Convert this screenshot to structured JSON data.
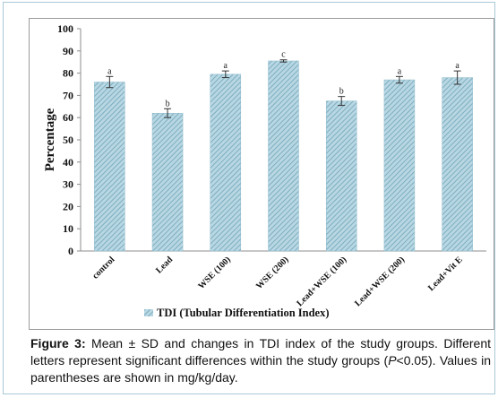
{
  "chart_data": {
    "type": "bar",
    "categories": [
      "control",
      "Lead",
      "WSE (100)",
      "WSE (200)",
      "Lead+WSE (100)",
      "Lead+WSE (200)",
      "Lead+Vit E"
    ],
    "series": [
      {
        "name": "TDI (Tubular Differentiation Index)",
        "values": [
          76,
          62,
          79.5,
          85.5,
          67.5,
          77,
          78
        ],
        "errors": [
          2.5,
          2.0,
          1.5,
          0.5,
          2.0,
          1.5,
          3.0
        ],
        "letters": [
          "a",
          "b",
          "a",
          "c",
          "b",
          "a",
          "a"
        ]
      }
    ],
    "ylabel": "Percentage",
    "xlabel": "",
    "ylim": [
      0,
      100
    ],
    "yticks": [
      "0",
      "10",
      "20",
      "30",
      "40",
      "50",
      "60",
      "70",
      "80",
      "90",
      "100"
    ],
    "grid": false,
    "legend_position": "bottom",
    "bar_color": "#a9cfdc",
    "bar_pattern_color": "#5f97ad"
  },
  "caption": {
    "label": "Figure 3:",
    "text_1": " Mean ± SD and changes in TDI index of the study groups. Different letters represent significant differences within the study groups (",
    "p_symbol": "P",
    "text_2": "<0.05). Values in parentheses are shown in mg/kg/day."
  }
}
